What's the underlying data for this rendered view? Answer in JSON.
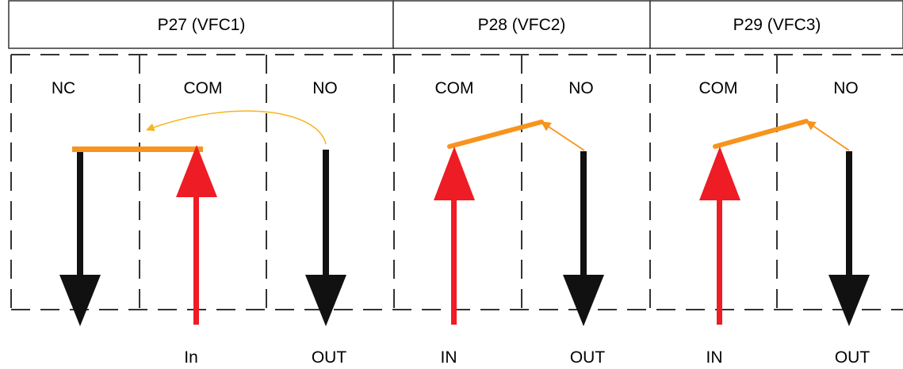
{
  "headers": [
    {
      "label": "P27 (VFC1)"
    },
    {
      "label": "P28 (VFC2)"
    },
    {
      "label": "P29 (VFC3)"
    }
  ],
  "terminals": {
    "p27": [
      "NC",
      "COM",
      "NO"
    ],
    "p28": [
      "COM",
      "NO"
    ],
    "p29": [
      "COM",
      "NO"
    ]
  },
  "bottom_labels": {
    "p27": [
      "In",
      "OUT"
    ],
    "p28": [
      "IN",
      "OUT"
    ],
    "p29": [
      "IN",
      "OUT"
    ]
  },
  "colors": {
    "input_arrow": "#ee1c25",
    "output_arrow": "#111111",
    "contact": "#f7941d",
    "switch_arrow": "#f7b51d",
    "border": "#333333"
  }
}
